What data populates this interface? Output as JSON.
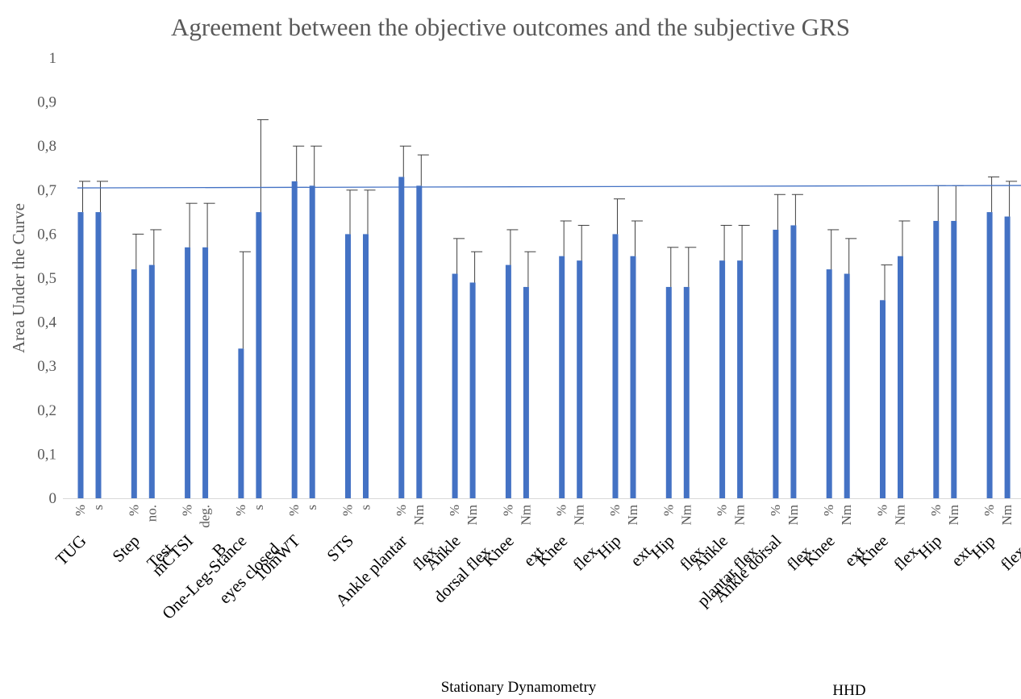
{
  "chart_data": {
    "type": "bar",
    "title": "Agreement between the objective outcomes and the subjective GRS",
    "ylabel": "Area Under the Curve",
    "xlabel": "",
    "ylim": [
      0,
      1
    ],
    "yticks": [
      "0",
      "0,1",
      "0,2",
      "0,3",
      "0,4",
      "0,5",
      "0,6",
      "0,7",
      "0,8",
      "0,9",
      "1"
    ],
    "reference_line": 0.705,
    "bar_color": "#4472C4",
    "line_color": "#4472C4",
    "error_bar_color": "#404040",
    "grid": false,
    "groups": [
      {
        "label": [
          "TUG"
        ],
        "bars": [
          {
            "unit": "%",
            "value": 0.65,
            "upper": 0.72
          },
          {
            "unit": "s",
            "value": 0.65,
            "upper": 0.72
          }
        ]
      },
      {
        "label": [
          "Step",
          "Test"
        ],
        "bars": [
          {
            "unit": "%",
            "value": 0.52,
            "upper": 0.6
          },
          {
            "unit": "no.",
            "value": 0.53,
            "upper": 0.61
          }
        ]
      },
      {
        "label": [
          "mCTSI",
          "B"
        ],
        "bars": [
          {
            "unit": "%",
            "value": 0.57,
            "upper": 0.67
          },
          {
            "unit": "deg.",
            "value": 0.57,
            "upper": 0.67
          }
        ]
      },
      {
        "label": [
          "One-Leg-Stance",
          "eyes closed"
        ],
        "bars": [
          {
            "unit": "%",
            "value": 0.34,
            "upper": 0.56
          },
          {
            "unit": "s",
            "value": 0.65,
            "upper": 0.86
          }
        ]
      },
      {
        "label": [
          "10mWT"
        ],
        "bars": [
          {
            "unit": "%",
            "value": 0.72,
            "upper": 0.8
          },
          {
            "unit": "s",
            "value": 0.71,
            "upper": 0.8
          }
        ]
      },
      {
        "label": [
          "STS"
        ],
        "bars": [
          {
            "unit": "%",
            "value": 0.6,
            "upper": 0.7
          },
          {
            "unit": "s",
            "value": 0.6,
            "upper": 0.7
          }
        ]
      },
      {
        "label": [
          "Ankle plantar",
          "flex."
        ],
        "bars": [
          {
            "unit": "%",
            "value": 0.73,
            "upper": 0.8
          },
          {
            "unit": "Nm",
            "value": 0.71,
            "upper": 0.78
          }
        ]
      },
      {
        "label": [
          "Ankle",
          "dorsal flex."
        ],
        "bars": [
          {
            "unit": "%",
            "value": 0.51,
            "upper": 0.59
          },
          {
            "unit": "Nm",
            "value": 0.49,
            "upper": 0.56
          }
        ]
      },
      {
        "label": [
          "Knee",
          "ext."
        ],
        "bars": [
          {
            "unit": "%",
            "value": 0.53,
            "upper": 0.61
          },
          {
            "unit": "Nm",
            "value": 0.48,
            "upper": 0.56
          }
        ]
      },
      {
        "label": [
          "Knee",
          "flex."
        ],
        "bars": [
          {
            "unit": "%",
            "value": 0.55,
            "upper": 0.63
          },
          {
            "unit": "Nm",
            "value": 0.54,
            "upper": 0.62
          }
        ]
      },
      {
        "label": [
          "Hip",
          "ext."
        ],
        "bars": [
          {
            "unit": "%",
            "value": 0.6,
            "upper": 0.68
          },
          {
            "unit": "Nm",
            "value": 0.55,
            "upper": 0.63
          }
        ]
      },
      {
        "label": [
          "Hip",
          "flex."
        ],
        "bars": [
          {
            "unit": "%",
            "value": 0.48,
            "upper": 0.57
          },
          {
            "unit": "Nm",
            "value": 0.48,
            "upper": 0.57
          }
        ]
      },
      {
        "label": [
          "Ankle",
          "plantar flex."
        ],
        "bars": [
          {
            "unit": "%",
            "value": 0.54,
            "upper": 0.62
          },
          {
            "unit": "Nm",
            "value": 0.54,
            "upper": 0.62
          }
        ]
      },
      {
        "label": [
          "Ankle dorsal",
          "flex."
        ],
        "bars": [
          {
            "unit": "%",
            "value": 0.61,
            "upper": 0.69
          },
          {
            "unit": "Nm",
            "value": 0.62,
            "upper": 0.69
          }
        ]
      },
      {
        "label": [
          "Knee",
          "ext."
        ],
        "bars": [
          {
            "unit": "%",
            "value": 0.52,
            "upper": 0.61
          },
          {
            "unit": "Nm",
            "value": 0.51,
            "upper": 0.59
          }
        ]
      },
      {
        "label": [
          "Knee",
          "flex."
        ],
        "bars": [
          {
            "unit": "%",
            "value": 0.45,
            "upper": 0.53
          },
          {
            "unit": "Nm",
            "value": 0.55,
            "upper": 0.63
          }
        ]
      },
      {
        "label": [
          "Hip",
          "ext."
        ],
        "bars": [
          {
            "unit": "%",
            "value": 0.63,
            "upper": 0.71
          },
          {
            "unit": "Nm",
            "value": 0.63,
            "upper": 0.71
          }
        ]
      },
      {
        "label": [
          "Hip",
          "flex."
        ],
        "bars": [
          {
            "unit": "%",
            "value": 0.65,
            "upper": 0.73
          },
          {
            "unit": "Nm",
            "value": 0.64,
            "upper": 0.72
          }
        ]
      }
    ],
    "section_labels": [
      "Stationary Dynamometry",
      "HHD"
    ]
  }
}
